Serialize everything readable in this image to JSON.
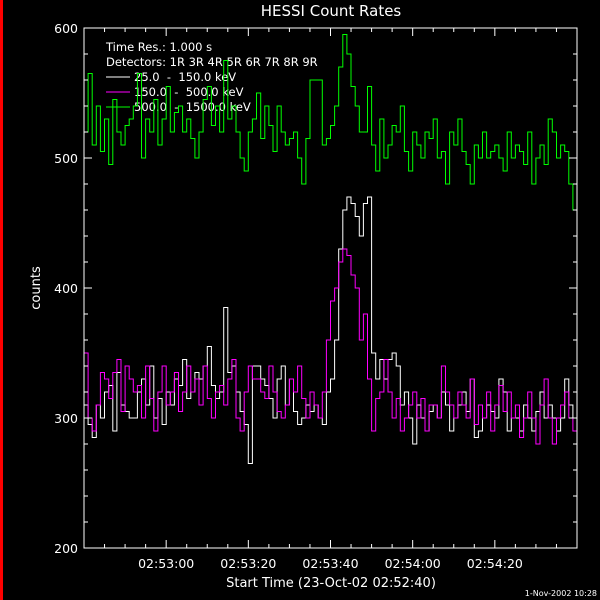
{
  "chart_data": {
    "type": "line",
    "title": "HESSI Count Rates",
    "xlabel": "Start Time (23-Oct-02 02:52:40)",
    "ylabel": "counts",
    "ylim": [
      200,
      600
    ],
    "xlim_seconds": [
      0,
      120
    ],
    "yticks": [
      200,
      300,
      400,
      500,
      600
    ],
    "xticks": [
      {
        "t": 20,
        "label": "02:53:00"
      },
      {
        "t": 40,
        "label": "02:53:20"
      },
      {
        "t": 60,
        "label": "02:53:40"
      },
      {
        "t": 80,
        "label": "02:54:00"
      },
      {
        "t": 100,
        "label": "02:54:20"
      }
    ],
    "info_lines": [
      "Time Res.: 1.000 s",
      "Detectors: 1R 3R 4R 5R 6R 7R 8R 9R"
    ],
    "footer": "1-Nov-2002 10:28",
    "grid": false,
    "legend_position": "top-left",
    "series": [
      {
        "name": "25.0  -  150.0 keV",
        "color": "#ffffff",
        "values": [
          310,
          295,
          285,
          310,
          300,
          320,
          325,
          290,
          335,
          310,
          305,
          300,
          300,
          320,
          330,
          310,
          340,
          300,
          315,
          295,
          320,
          310,
          330,
          325,
          345,
          315,
          320,
          335,
          330,
          340,
          355,
          325,
          315,
          320,
          385,
          335,
          340,
          320,
          305,
          295,
          265,
          340,
          340,
          330,
          325,
          315,
          300,
          330,
          340,
          310,
          330,
          305,
          295,
          300,
          310,
          305,
          310,
          300,
          295,
          320,
          330,
          360,
          430,
          460,
          470,
          465,
          455,
          440,
          465,
          470,
          350,
          330,
          345,
          330,
          345,
          350,
          340,
          310,
          320,
          300,
          280,
          310,
          300,
          290,
          305,
          310,
          300,
          320,
          310,
          290,
          300,
          310,
          320,
          305,
          330,
          285,
          290,
          300,
          310,
          305,
          300,
          330,
          320,
          290,
          300,
          300,
          290,
          310,
          300,
          290,
          305,
          320,
          300,
          310,
          300,
          290,
          300,
          330,
          310,
          300
        ]
      },
      {
        "name": "150.0  -  500.0 keV",
        "color": "#ff00ff",
        "values": [
          350,
          300,
          290,
          310,
          335,
          330,
          315,
          335,
          345,
          305,
          340,
          330,
          320,
          325,
          300,
          340,
          315,
          290,
          320,
          340,
          310,
          320,
          335,
          305,
          320,
          340,
          320,
          330,
          310,
          340,
          315,
          300,
          320,
          325,
          310,
          330,
          345,
          300,
          290,
          320,
          340,
          330,
          330,
          320,
          315,
          340,
          320,
          305,
          300,
          310,
          330,
          320,
          340,
          315,
          300,
          320,
          310,
          300,
          320,
          360,
          390,
          400,
          420,
          430,
          425,
          410,
          400,
          360,
          380,
          330,
          290,
          315,
          320,
          345,
          320,
          300,
          315,
          290,
          300,
          310,
          320,
          300,
          315,
          290,
          310,
          310,
          300,
          340,
          320,
          310,
          300,
          320,
          310,
          300,
          330,
          295,
          310,
          300,
          320,
          290,
          310,
          325,
          305,
          320,
          300,
          310,
          285,
          300,
          320,
          300,
          280,
          310,
          330,
          300,
          280,
          300,
          310,
          320,
          300,
          290
        ]
      },
      {
        "name": "500.0  -  1500.0 keV",
        "color": "#00ff00",
        "values": [
          520,
          565,
          510,
          540,
          505,
          530,
          495,
          545,
          520,
          510,
          525,
          530,
          540,
          565,
          500,
          530,
          520,
          545,
          510,
          530,
          555,
          520,
          535,
          540,
          520,
          530,
          515,
          500,
          520,
          545,
          555,
          525,
          540,
          520,
          575,
          530,
          540,
          520,
          500,
          490,
          520,
          530,
          550,
          515,
          540,
          525,
          505,
          540,
          520,
          510,
          515,
          520,
          500,
          480,
          515,
          560,
          560,
          560,
          510,
          515,
          525,
          540,
          570,
          595,
          580,
          555,
          540,
          520,
          520,
          555,
          510,
          490,
          530,
          500,
          510,
          525,
          520,
          540,
          505,
          490,
          520,
          510,
          500,
          520,
          515,
          530,
          500,
          505,
          480,
          520,
          510,
          530,
          505,
          495,
          480,
          510,
          500,
          520,
          500,
          505,
          510,
          500,
          490,
          520,
          500,
          510,
          505,
          495,
          520,
          480,
          500,
          510,
          495,
          530,
          520,
          500,
          510,
          505,
          480,
          460
        ]
      }
    ]
  }
}
